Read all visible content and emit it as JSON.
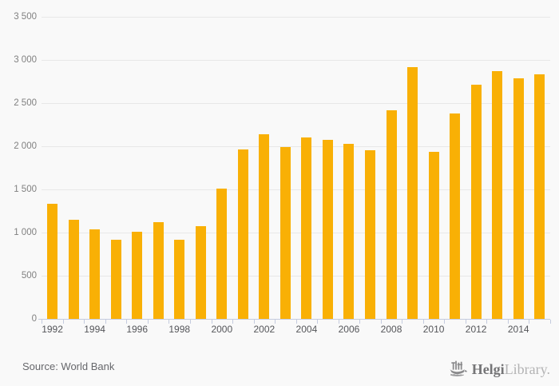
{
  "colors": {
    "background": "#f9f9f9",
    "bar": "#f9b005",
    "gridline": "#e8e8e8",
    "axis_line": "#c4cbde",
    "ytick_text": "#818181",
    "xtick_text": "#55565a",
    "source_text": "#66676b",
    "logo_dark": "#757577",
    "logo_light": "#b3b3b4",
    "logo_icon": "#8a8a8c"
  },
  "chart_data": {
    "type": "bar",
    "title": "",
    "xlabel": "",
    "ylabel": "",
    "x": [
      1992,
      1993,
      1994,
      1995,
      1996,
      1997,
      1998,
      1999,
      2000,
      2001,
      2002,
      2003,
      2004,
      2005,
      2006,
      2007,
      2008,
      2009,
      2010,
      2011,
      2012,
      2013,
      2014,
      2015
    ],
    "values": [
      1335,
      1145,
      1035,
      915,
      1005,
      1125,
      920,
      1070,
      1505,
      1960,
      2140,
      1995,
      2105,
      2070,
      2025,
      1950,
      2420,
      2920,
      1935,
      2380,
      2715,
      2870,
      2790,
      2835
    ],
    "ylim": [
      0,
      3500
    ],
    "ytick_interval": 500,
    "ytick_labels": [
      "0",
      "500",
      "1 000",
      "1 500",
      "2 000",
      "2 500",
      "3 000",
      "3 500"
    ],
    "xtick_labels": [
      "1992",
      "1994",
      "1996",
      "1998",
      "2000",
      "2002",
      "2004",
      "2006",
      "2008",
      "2010",
      "2012",
      "2014"
    ],
    "grid": true,
    "legend_position": "none",
    "bar_color": "#f9b005"
  },
  "footer": {
    "source": "Source: World Bank",
    "logo": {
      "icon": "helgi-ship-icon",
      "brand_bold": "Helgi",
      "brand_light": "Library."
    }
  }
}
